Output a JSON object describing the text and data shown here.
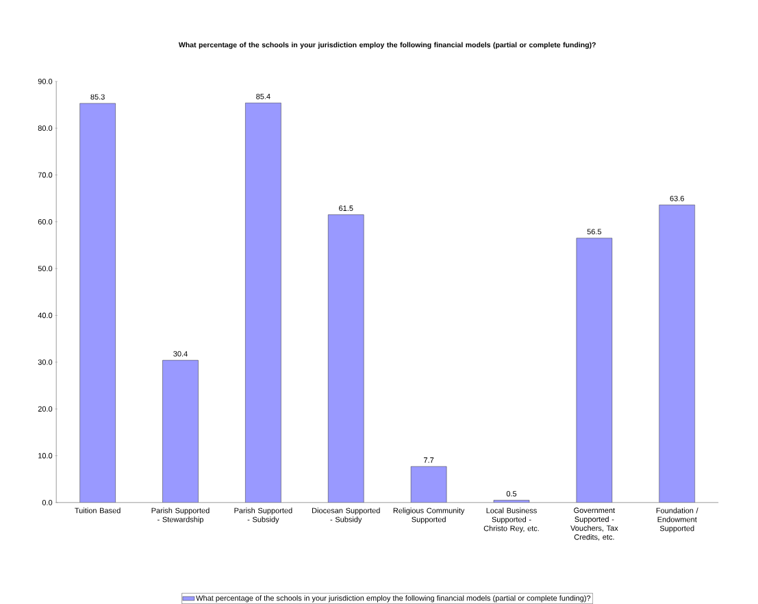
{
  "chart_data": {
    "type": "bar",
    "title": "What percentage of the schools in your jurisdiction employ the following financial models (partial or complete funding)?",
    "categories": [
      "Tuition Based",
      "Parish Supported - Stewardship",
      "Parish Supported - Subsidy",
      "Diocesan Supported - Subsidy",
      "Religious Community Supported",
      "Local Business Supported - Christo Rey, etc.",
      "Government Supported - Vouchers, Tax Credits, etc.",
      "Foundation / Endowment Supported"
    ],
    "series": [
      {
        "name": "What percentage of the schools in your jurisdiction employ the following financial models (partial or complete funding)?",
        "color": "#9999ff",
        "values": [
          85.3,
          30.4,
          85.4,
          61.5,
          7.7,
          0.5,
          56.5,
          63.6
        ]
      }
    ],
    "ylim": [
      0,
      90
    ],
    "yticks": [
      {
        "value": 0,
        "label": "0.0"
      },
      {
        "value": 10,
        "label": "10.0"
      },
      {
        "value": 20,
        "label": "20.0"
      },
      {
        "value": 30,
        "label": "30.0"
      },
      {
        "value": 40,
        "label": "40.0"
      },
      {
        "value": 50,
        "label": "50.0"
      },
      {
        "value": 60,
        "label": "60.0"
      },
      {
        "value": 70,
        "label": "70.0"
      },
      {
        "value": 80,
        "label": "80.0"
      },
      {
        "value": 90,
        "label": "90.0"
      }
    ],
    "data_labels": true,
    "grid": false,
    "legend": "bottom"
  }
}
